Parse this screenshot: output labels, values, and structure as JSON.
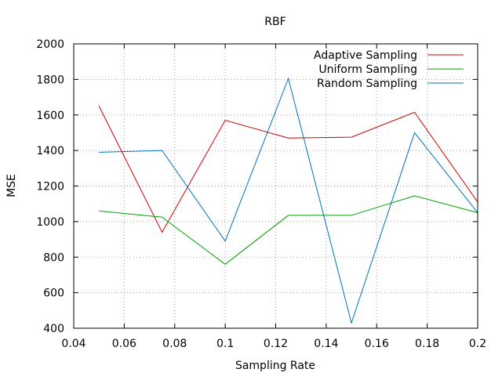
{
  "chart_data": {
    "type": "line",
    "title": "RBF",
    "xlabel": "Sampling Rate",
    "ylabel": "MSE",
    "xlim": [
      0.04,
      0.2
    ],
    "ylim": [
      400,
      2000
    ],
    "xticks": [
      0.04,
      0.06,
      0.08,
      0.1,
      0.12,
      0.14,
      0.16,
      0.18,
      0.2
    ],
    "xtick_labels": [
      "0.04",
      "0.06",
      "0.08",
      "0.1",
      "0.12",
      "0.14",
      "0.16",
      "0.18",
      "0.2"
    ],
    "yticks": [
      400,
      600,
      800,
      1000,
      1200,
      1400,
      1600,
      1800,
      2000
    ],
    "ytick_labels": [
      "400",
      "600",
      "800",
      "1000",
      "1200",
      "1400",
      "1600",
      "1800",
      "2000"
    ],
    "grid": true,
    "legend_position": "top-right",
    "x": [
      0.05,
      0.075,
      0.1,
      0.125,
      0.15,
      0.175,
      0.2
    ],
    "series": [
      {
        "name": "Adaptive Sampling",
        "color": "#cc0000",
        "values": [
          1650,
          940,
          1570,
          1470,
          1475,
          1615,
          1110
        ]
      },
      {
        "name": "Uniform Sampling",
        "color": "#00a000",
        "values": [
          1060,
          1025,
          760,
          1035,
          1035,
          1145,
          1050
        ]
      },
      {
        "name": "Random Sampling",
        "color": "#0070c0",
        "values": [
          1390,
          1400,
          890,
          1805,
          430,
          1500,
          1050
        ]
      }
    ]
  }
}
